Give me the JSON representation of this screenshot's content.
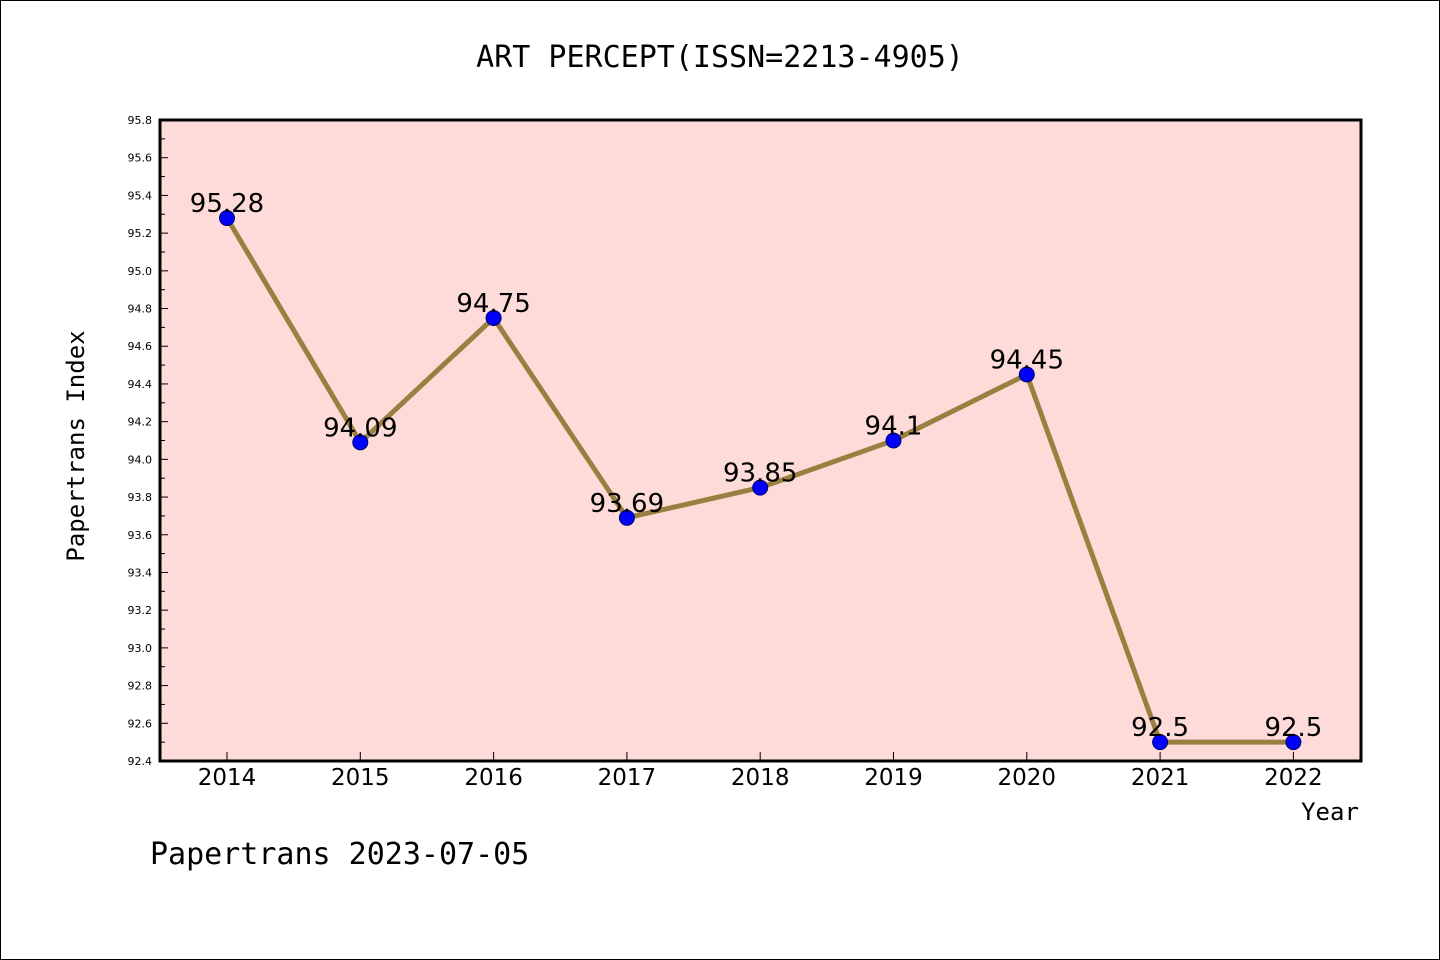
{
  "chart_data": {
    "type": "line",
    "title": "ART PERCEPT(ISSN=2213-4905)",
    "xlabel": "Year",
    "ylabel": "Papertrans Index",
    "x": [
      "2014",
      "2015",
      "2016",
      "2017",
      "2018",
      "2019",
      "2020",
      "2021",
      "2022"
    ],
    "values": [
      95.28,
      94.09,
      94.75,
      93.69,
      93.85,
      94.1,
      94.45,
      92.5,
      92.5
    ],
    "data_labels": [
      "95.28",
      "94.09",
      "94.75",
      "93.69",
      "93.85",
      "94.1",
      "94.45",
      "92.5",
      "92.5"
    ],
    "ylim": [
      92.4,
      95.8
    ],
    "yticks": [
      "92.4",
      "92.6",
      "92.8",
      "93.0",
      "93.2",
      "93.4",
      "93.6",
      "93.8",
      "94.0",
      "94.2",
      "94.4",
      "94.6",
      "94.8",
      "95.0",
      "95.2",
      "95.4",
      "95.6",
      "95.8"
    ],
    "grid": false,
    "colors": {
      "plot_background": "#fddbd9",
      "line": "#9a8040",
      "marker": "#0000ff"
    }
  },
  "footer": "Papertrans 2023-07-05"
}
